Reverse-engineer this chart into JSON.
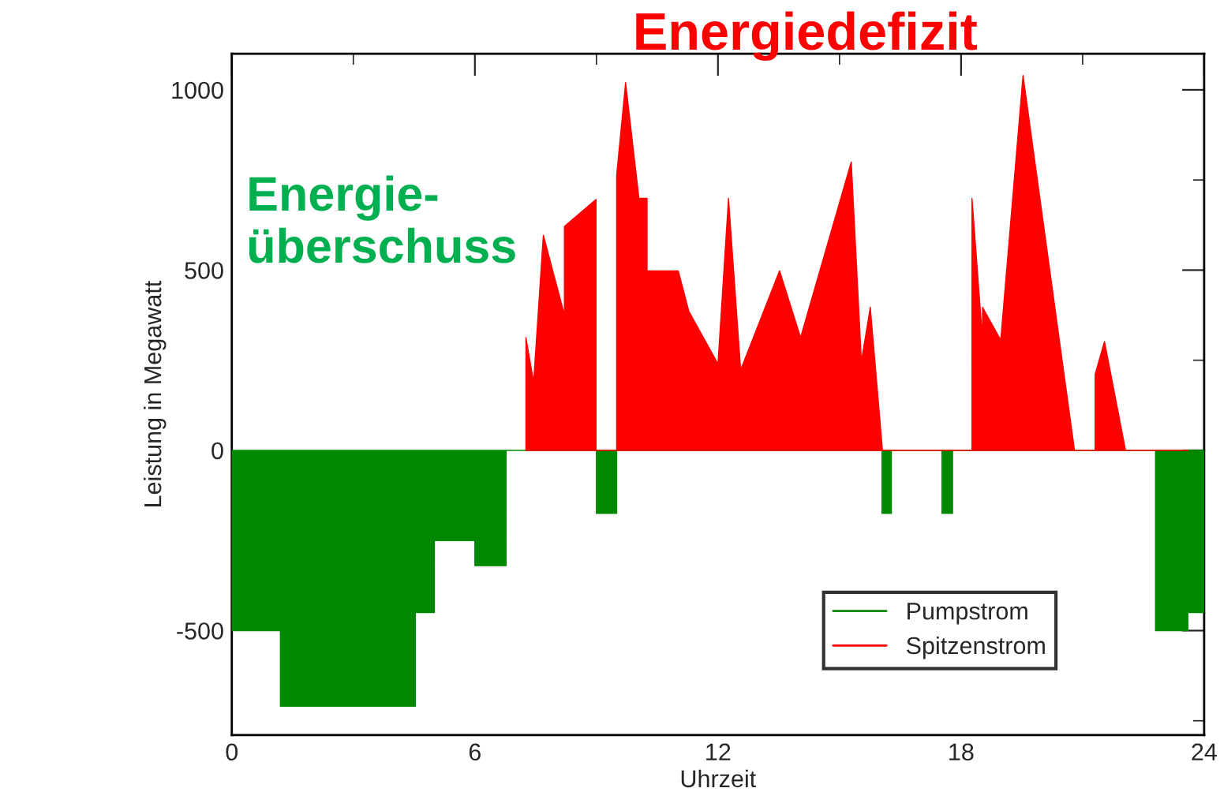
{
  "chart_data": {
    "type": "area",
    "title": "Energiedefizit",
    "annotations": [
      "Energie-\nüberschuss"
    ],
    "xlabel": "Uhrzeit",
    "ylabel": "Leistung in Megawatt",
    "series": [
      {
        "name": "Pumpstrom",
        "color": "#008800",
        "x": [
          0,
          1.2,
          1.2,
          4.53,
          4.53,
          5.0,
          5.0,
          6.0,
          6.0,
          6.77,
          6.77,
          9.0,
          9.0,
          9.5,
          9.5,
          16.05,
          16.05,
          16.28,
          16.28,
          17.53,
          17.53,
          17.79,
          17.79,
          22.8,
          22.8,
          23.6,
          23.6,
          24
        ],
        "values": [
          -500,
          -500,
          -710,
          -710,
          -450,
          -450,
          -250,
          -250,
          -320,
          -320,
          0,
          0,
          -175,
          -175,
          0,
          0,
          -175,
          -175,
          0,
          0,
          -175,
          -175,
          0,
          0,
          -500,
          -500,
          -450,
          -450
        ]
      },
      {
        "name": "Spitzenstrom",
        "color": "#ff0000",
        "x": [
          7.26,
          7.26,
          7.45,
          7.69,
          8.21,
          8.21,
          8.99,
          8.99,
          9.5,
          9.5,
          9.72,
          10.05,
          10.25,
          10.25,
          11.02,
          11.28,
          12.0,
          12.26,
          12.56,
          13.52,
          14.04,
          15.29,
          15.54,
          15.76,
          16.06,
          18.27,
          18.27,
          18.53,
          18.53,
          18.98,
          19.53,
          20.8,
          21.31,
          21.31,
          21.54,
          22.06,
          23.6
        ],
        "values": [
          0,
          313,
          189,
          597,
          376,
          621,
          696,
          0,
          0,
          764,
          1020,
          699,
          699,
          498,
          498,
          386,
          240,
          699,
          223,
          498,
          313,
          800,
          247,
          397,
          0,
          0,
          699,
          306,
          397,
          306,
          1040,
          0,
          0,
          211,
          302,
          0,
          0
        ]
      }
    ],
    "xlim": [
      0,
      24
    ],
    "ylim": [
      -790,
      1100
    ],
    "xticks": [
      0,
      {
        "value": 3,
        "label": null
      },
      6,
      {
        "value": 9,
        "label": null
      },
      12,
      {
        "value": 15,
        "label": null
      },
      18,
      {
        "value": 21,
        "label": null
      },
      24
    ],
    "yticks": [
      {
        "value": -750,
        "label": null
      },
      -500,
      {
        "value": -250,
        "label": null
      },
      0,
      {
        "value": 250,
        "label": null
      },
      500,
      {
        "value": 750,
        "label": null
      },
      1000
    ],
    "grid": false,
    "legend": "bottom right"
  }
}
